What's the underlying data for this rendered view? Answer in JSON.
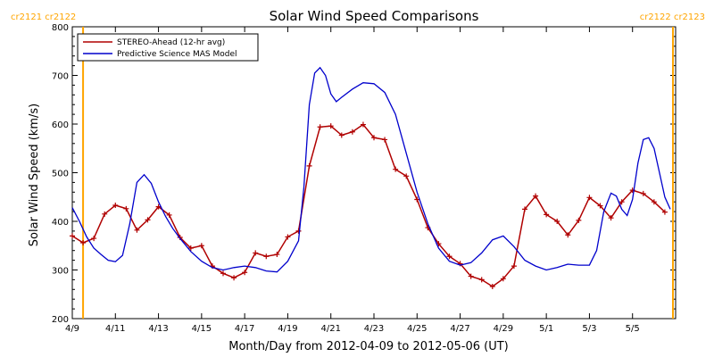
{
  "chart_data": {
    "type": "line",
    "title": "Solar Wind Speed Comparisons",
    "xlabel": "Month/Day from 2012-04-09 to 2012-05-06 (UT)",
    "ylabel": "Solar Wind Speed (km/s)",
    "xlim": [
      "2012-04-09",
      "2012-05-07"
    ],
    "ylim": [
      200,
      800
    ],
    "x_ticks": [
      {
        "date": "2012-04-09",
        "label": "4/9"
      },
      {
        "date": "2012-04-11",
        "label": "4/11"
      },
      {
        "date": "2012-04-13",
        "label": "4/13"
      },
      {
        "date": "2012-04-15",
        "label": "4/15"
      },
      {
        "date": "2012-04-17",
        "label": "4/17"
      },
      {
        "date": "2012-04-19",
        "label": "4/19"
      },
      {
        "date": "2012-04-21",
        "label": "4/21"
      },
      {
        "date": "2012-04-23",
        "label": "4/23"
      },
      {
        "date": "2012-04-25",
        "label": "4/25"
      },
      {
        "date": "2012-04-27",
        "label": "4/27"
      },
      {
        "date": "2012-04-29",
        "label": "4/29"
      },
      {
        "date": "2012-05-01",
        "label": "5/1"
      },
      {
        "date": "2012-05-03",
        "label": "5/3"
      },
      {
        "date": "2012-05-05",
        "label": "5/5"
      }
    ],
    "y_ticks": [
      200,
      300,
      400,
      500,
      600,
      700,
      800
    ],
    "legend_position": "top-left",
    "carrington_markers": [
      {
        "date": "2012-04-09T12:00",
        "left_label": "cr2121",
        "right_label": "cr2122",
        "label_align": "left",
        "color": "#FFA500"
      },
      {
        "date": "2012-05-06T21:00",
        "left_label": "cr2122",
        "right_label": "cr2123",
        "label_align": "right",
        "color": "#FFA500"
      }
    ],
    "series": [
      {
        "name": "STEREO-Ahead (12-hr avg)",
        "color": "#B00000",
        "marker": "+",
        "points": [
          [
            "2012-04-09T00:00",
            370
          ],
          [
            "2012-04-09T12:00",
            356
          ],
          [
            "2012-04-10T00:00",
            365
          ],
          [
            "2012-04-10T12:00",
            415
          ],
          [
            "2012-04-11T00:00",
            433
          ],
          [
            "2012-04-11T12:00",
            426
          ],
          [
            "2012-04-12T00:00",
            382
          ],
          [
            "2012-04-12T12:00",
            403
          ],
          [
            "2012-04-13T00:00",
            430
          ],
          [
            "2012-04-13T12:00",
            413
          ],
          [
            "2012-04-14T00:00",
            367
          ],
          [
            "2012-04-14T12:00",
            345
          ],
          [
            "2012-04-15T00:00",
            350
          ],
          [
            "2012-04-15T12:00",
            308
          ],
          [
            "2012-04-16T00:00",
            293
          ],
          [
            "2012-04-16T12:00",
            284
          ],
          [
            "2012-04-17T00:00",
            295
          ],
          [
            "2012-04-17T12:00",
            335
          ],
          [
            "2012-04-18T00:00",
            328
          ],
          [
            "2012-04-18T12:00",
            332
          ],
          [
            "2012-04-19T00:00",
            368
          ],
          [
            "2012-04-19T12:00",
            380
          ],
          [
            "2012-04-20T00:00",
            514
          ],
          [
            "2012-04-20T12:00",
            594
          ],
          [
            "2012-04-21T00:00",
            596
          ],
          [
            "2012-04-21T12:00",
            577
          ],
          [
            "2012-04-22T00:00",
            584
          ],
          [
            "2012-04-22T12:00",
            599
          ],
          [
            "2012-04-23T00:00",
            572
          ],
          [
            "2012-04-23T12:00",
            568
          ],
          [
            "2012-04-24T00:00",
            507
          ],
          [
            "2012-04-24T12:00",
            493
          ],
          [
            "2012-04-25T00:00",
            445
          ],
          [
            "2012-04-25T12:00",
            387
          ],
          [
            "2012-04-26T00:00",
            354
          ],
          [
            "2012-04-26T12:00",
            328
          ],
          [
            "2012-04-27T00:00",
            313
          ],
          [
            "2012-04-27T12:00",
            287
          ],
          [
            "2012-04-28T00:00",
            280
          ],
          [
            "2012-04-28T12:00",
            266
          ],
          [
            "2012-04-29T00:00",
            282
          ],
          [
            "2012-04-29T12:00",
            308
          ],
          [
            "2012-04-30T00:00",
            425
          ],
          [
            "2012-04-30T12:00",
            452
          ],
          [
            "2012-05-01T00:00",
            414
          ],
          [
            "2012-05-01T12:00",
            400
          ],
          [
            "2012-05-02T00:00",
            372
          ],
          [
            "2012-05-02T12:00",
            402
          ],
          [
            "2012-05-03T00:00",
            449
          ],
          [
            "2012-05-03T12:00",
            432
          ],
          [
            "2012-05-04T00:00",
            407
          ],
          [
            "2012-05-04T12:00",
            440
          ],
          [
            "2012-05-05T00:00",
            464
          ],
          [
            "2012-05-05T12:00",
            457
          ],
          [
            "2012-05-06T00:00",
            440
          ],
          [
            "2012-05-06T12:00",
            419
          ]
        ]
      },
      {
        "name": "Predictive Science MAS Model",
        "color": "#0000CC",
        "points": [
          [
            "2012-04-09T00:00",
            428
          ],
          [
            "2012-04-09T08:00",
            400
          ],
          [
            "2012-04-09T16:00",
            368
          ],
          [
            "2012-04-10T00:00",
            345
          ],
          [
            "2012-04-10T08:00",
            332
          ],
          [
            "2012-04-10T16:00",
            320
          ],
          [
            "2012-04-11T00:00",
            317
          ],
          [
            "2012-04-11T08:00",
            330
          ],
          [
            "2012-04-11T16:00",
            395
          ],
          [
            "2012-04-12T00:00",
            480
          ],
          [
            "2012-04-12T08:00",
            496
          ],
          [
            "2012-04-12T16:00",
            478
          ],
          [
            "2012-04-13T00:00",
            440
          ],
          [
            "2012-04-13T08:00",
            410
          ],
          [
            "2012-04-13T16:00",
            385
          ],
          [
            "2012-04-14T00:00",
            365
          ],
          [
            "2012-04-14T12:00",
            338
          ],
          [
            "2012-04-15T00:00",
            318
          ],
          [
            "2012-04-15T12:00",
            305
          ],
          [
            "2012-04-16T00:00",
            300
          ],
          [
            "2012-04-16T12:00",
            305
          ],
          [
            "2012-04-17T00:00",
            308
          ],
          [
            "2012-04-17T12:00",
            305
          ],
          [
            "2012-04-18T00:00",
            298
          ],
          [
            "2012-04-18T12:00",
            296
          ],
          [
            "2012-04-19T00:00",
            318
          ],
          [
            "2012-04-19T12:00",
            360
          ],
          [
            "2012-04-19T18:00",
            470
          ],
          [
            "2012-04-20T00:00",
            640
          ],
          [
            "2012-04-20T06:00",
            705
          ],
          [
            "2012-04-20T12:00",
            716
          ],
          [
            "2012-04-20T18:00",
            700
          ],
          [
            "2012-04-21T00:00",
            662
          ],
          [
            "2012-04-21T06:00",
            646
          ],
          [
            "2012-04-21T12:00",
            655
          ],
          [
            "2012-04-22T00:00",
            672
          ],
          [
            "2012-04-22T12:00",
            685
          ],
          [
            "2012-04-23T00:00",
            683
          ],
          [
            "2012-04-23T12:00",
            665
          ],
          [
            "2012-04-24T00:00",
            620
          ],
          [
            "2012-04-24T12:00",
            540
          ],
          [
            "2012-04-25T00:00",
            460
          ],
          [
            "2012-04-25T12:00",
            395
          ],
          [
            "2012-04-26T00:00",
            345
          ],
          [
            "2012-04-26T12:00",
            318
          ],
          [
            "2012-04-27T00:00",
            310
          ],
          [
            "2012-04-27T12:00",
            315
          ],
          [
            "2012-04-28T00:00",
            335
          ],
          [
            "2012-04-28T12:00",
            362
          ],
          [
            "2012-04-29T00:00",
            370
          ],
          [
            "2012-04-29T12:00",
            348
          ],
          [
            "2012-04-30T00:00",
            320
          ],
          [
            "2012-04-30T12:00",
            308
          ],
          [
            "2012-05-01T00:00",
            300
          ],
          [
            "2012-05-01T12:00",
            305
          ],
          [
            "2012-05-02T00:00",
            312
          ],
          [
            "2012-05-02T12:00",
            310
          ],
          [
            "2012-05-03T00:00",
            310
          ],
          [
            "2012-05-03T08:00",
            340
          ],
          [
            "2012-05-03T16:00",
            420
          ],
          [
            "2012-05-04T00:00",
            458
          ],
          [
            "2012-05-04T06:00",
            452
          ],
          [
            "2012-05-04T12:00",
            425
          ],
          [
            "2012-05-04T18:00",
            412
          ],
          [
            "2012-05-05T00:00",
            445
          ],
          [
            "2012-05-05T06:00",
            520
          ],
          [
            "2012-05-05T12:00",
            568
          ],
          [
            "2012-05-05T18:00",
            572
          ],
          [
            "2012-05-06T00:00",
            550
          ],
          [
            "2012-05-06T06:00",
            500
          ],
          [
            "2012-05-06T12:00",
            450
          ],
          [
            "2012-05-06T18:00",
            425
          ]
        ]
      }
    ]
  }
}
